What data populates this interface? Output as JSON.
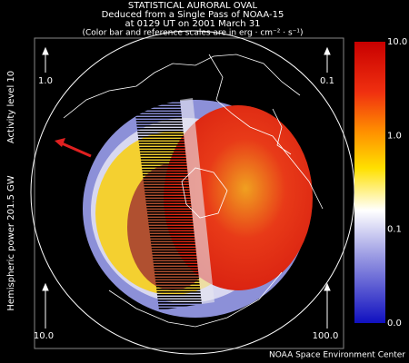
{
  "header": {
    "lines": [
      "STATISTICAL AURORAL OVAL",
      "Deduced from a Single Pass of NOAA-15",
      "at 0129 UT on 2001 March 31",
      "(Color bar and reference scales are in erg · cm⁻² · s⁻¹)"
    ]
  },
  "side_labels": {
    "activity": "Activity level 10",
    "power": "Hemispheric power 201.5 GW"
  },
  "reference_scales": {
    "top_left": "1.0",
    "top_right": "0.1",
    "bottom_left": "10.0",
    "bottom_right": "100.0"
  },
  "color_bar": {
    "labels": [
      "10.0",
      "1.0",
      "0.1",
      "0.0"
    ]
  },
  "footer": "NOAA Space Environment Center"
}
